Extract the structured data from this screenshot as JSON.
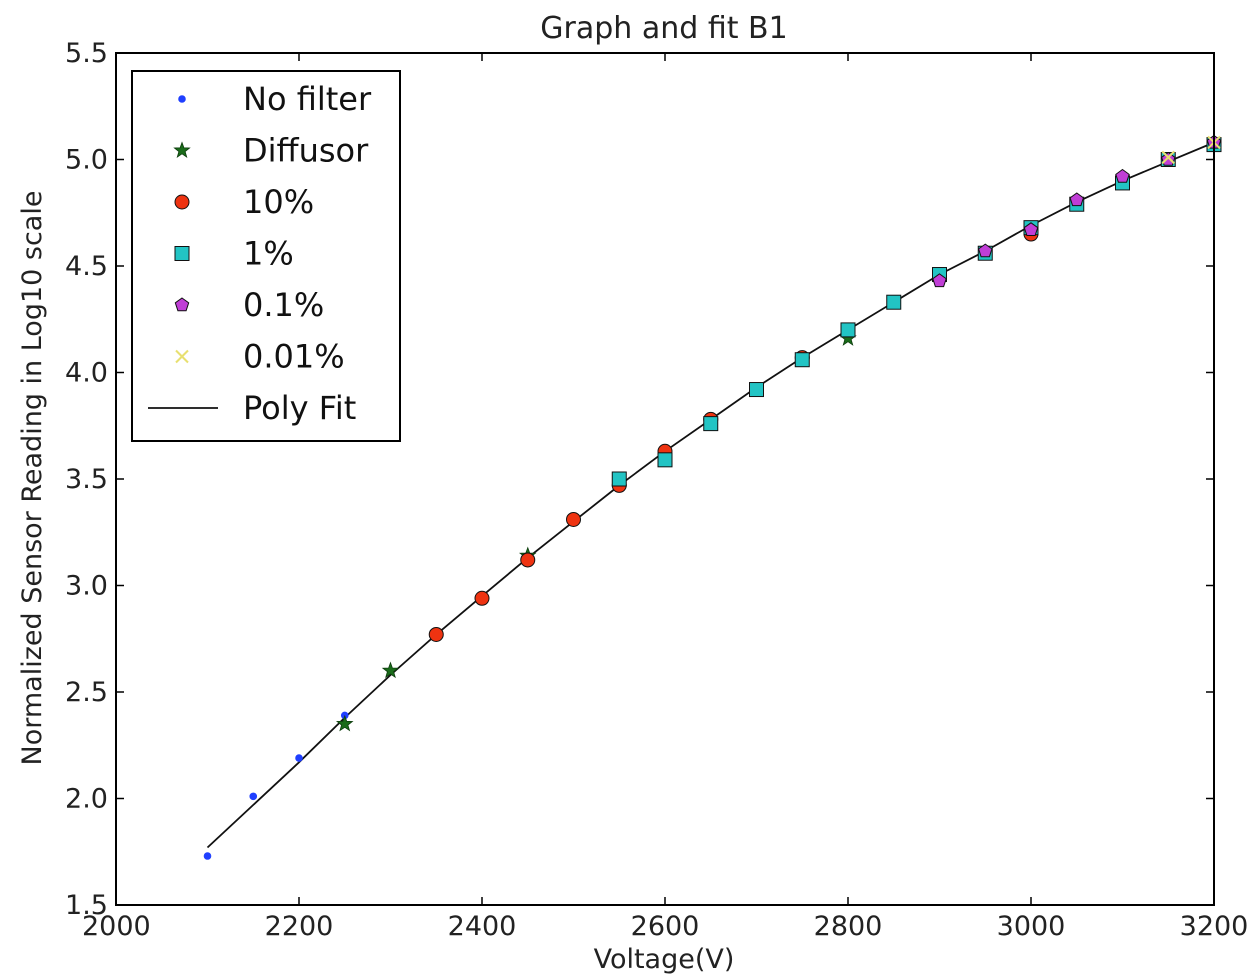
{
  "chart_data": {
    "type": "scatter",
    "title": "Graph and fit B1",
    "xlabel": "Voltage(V)",
    "ylabel": "Normalized Sensor Reading in Log10 scale",
    "xlim": [
      2000,
      3200
    ],
    "ylim": [
      1.5,
      5.5
    ],
    "xticks": [
      "2000",
      "2200",
      "2400",
      "2600",
      "2800",
      "3000",
      "3200"
    ],
    "yticks": [
      "1.5",
      "2.0",
      "2.5",
      "3.0",
      "3.5",
      "4.0",
      "4.5",
      "5.0",
      "5.5"
    ],
    "grid": false,
    "legend_position": "top-left",
    "series": [
      {
        "name": "No filter",
        "marker": "dot",
        "color": "#1f3fff",
        "x": [
          2100,
          2150,
          2200,
          2250
        ],
        "y": [
          1.73,
          2.01,
          2.19,
          2.39
        ]
      },
      {
        "name": "Diffusor",
        "marker": "star",
        "color": "#1a6b1a",
        "x": [
          2250,
          2300,
          2450,
          2800
        ],
        "y": [
          2.35,
          2.6,
          3.14,
          4.16
        ]
      },
      {
        "name": "10%",
        "marker": "circle",
        "color": "#ee3311",
        "x": [
          2350,
          2400,
          2450,
          2500,
          2550,
          2600,
          2650,
          2750,
          3000
        ],
        "y": [
          2.77,
          2.94,
          3.12,
          3.31,
          3.47,
          3.63,
          3.78,
          4.07,
          4.65
        ]
      },
      {
        "name": "1%",
        "marker": "square",
        "color": "#22c4c4",
        "x": [
          2550,
          2600,
          2650,
          2700,
          2750,
          2800,
          2850,
          2900,
          2950,
          3000,
          3050,
          3100,
          3150,
          3200
        ],
        "y": [
          3.5,
          3.59,
          3.76,
          3.92,
          4.06,
          4.2,
          4.33,
          4.46,
          4.56,
          4.68,
          4.79,
          4.89,
          5.0,
          5.07
        ]
      },
      {
        "name": "0.1%",
        "marker": "pentagon",
        "color": "#c03ed6",
        "x": [
          2900,
          2950,
          3000,
          3050,
          3100,
          3150,
          3200
        ],
        "y": [
          4.43,
          4.57,
          4.67,
          4.81,
          4.92,
          5.0,
          5.08
        ]
      },
      {
        "name": "0.01%",
        "marker": "x",
        "color": "#e8e070",
        "x": [
          3150,
          3200
        ],
        "y": [
          5.01,
          5.08
        ]
      },
      {
        "name": "Poly Fit",
        "marker": "line",
        "color": "#111111",
        "x": [
          2100,
          2150,
          2200,
          2250,
          2300,
          2350,
          2400,
          2450,
          2500,
          2550,
          2600,
          2650,
          2700,
          2750,
          2800,
          2850,
          2900,
          2950,
          3000,
          3050,
          3100,
          3150,
          3200
        ],
        "y": [
          1.77,
          1.97,
          2.17,
          2.38,
          2.58,
          2.77,
          2.95,
          3.13,
          3.3,
          3.47,
          3.63,
          3.78,
          3.93,
          4.07,
          4.2,
          4.33,
          4.46,
          4.57,
          4.69,
          4.8,
          4.9,
          4.99,
          5.08
        ]
      }
    ]
  }
}
